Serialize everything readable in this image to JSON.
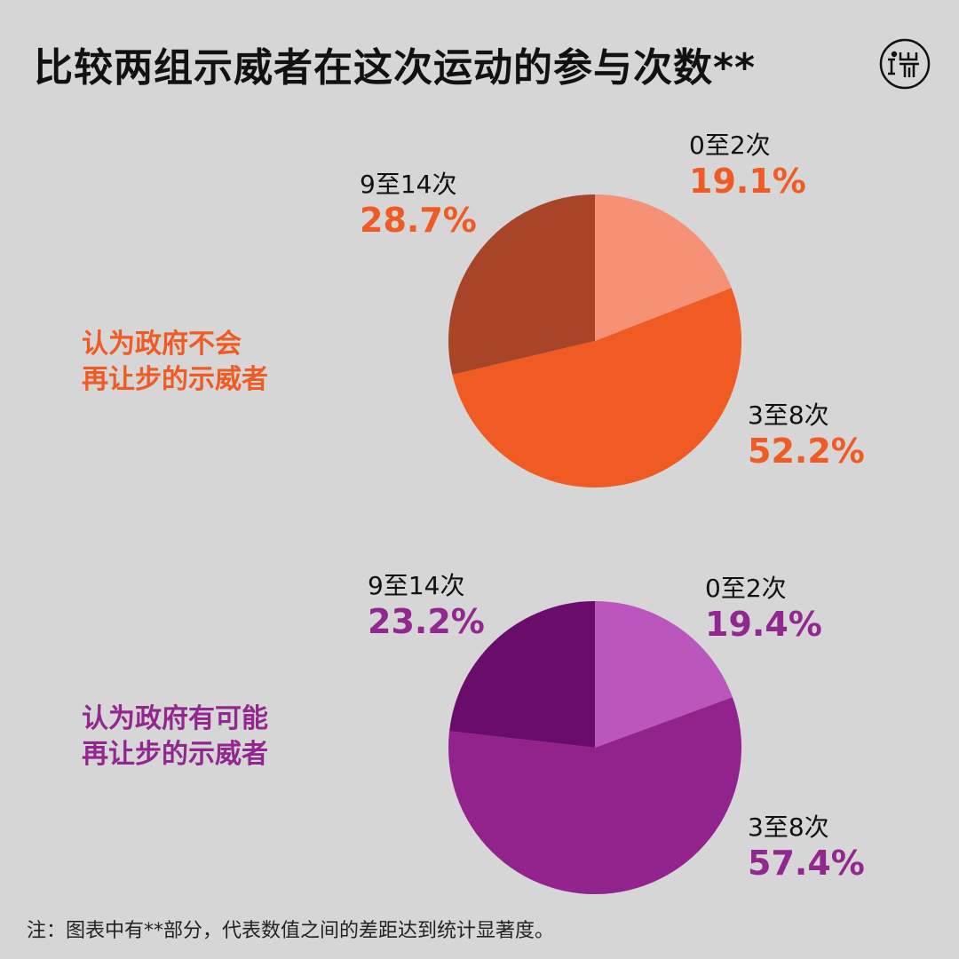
{
  "title": "比较两组示威者在这次运动的参与次数**",
  "footnote": "注：图表中有**部分，代表数值之间的差距达到统计显著度。",
  "chart_data": [
    {
      "type": "pie",
      "group_label": [
        "认为政府不会",
        "再让步的示威者"
      ],
      "accent": "#f05a23",
      "categories": [
        "0至2次",
        "3至8次",
        "9至14次"
      ],
      "values": [
        19.1,
        52.2,
        28.7
      ],
      "value_labels": [
        "19.1%",
        "52.2%",
        "28.7%"
      ],
      "colors": [
        "#f59275",
        "#f05a23",
        "#a84427"
      ]
    },
    {
      "type": "pie",
      "group_label": [
        "认为政府有可能",
        "再让步的示威者"
      ],
      "accent": "#92278f",
      "categories": [
        "0至2次",
        "3至8次",
        "9至14次"
      ],
      "values": [
        19.4,
        57.4,
        23.2
      ],
      "value_labels": [
        "19.4%",
        "57.4%",
        "23.2%"
      ],
      "colors": [
        "#bb57bc",
        "#92238c",
        "#6a0c6c"
      ]
    }
  ]
}
